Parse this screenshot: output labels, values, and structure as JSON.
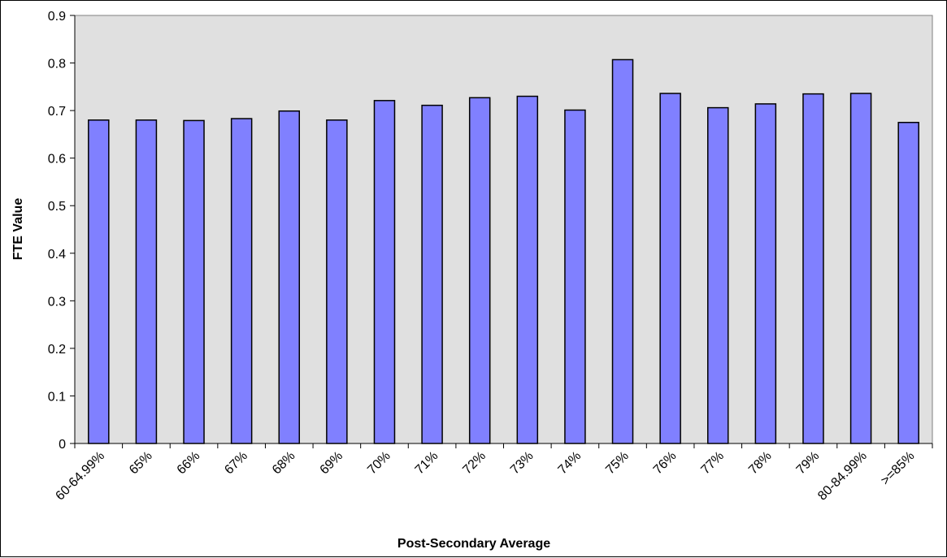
{
  "chart_data": {
    "type": "bar",
    "title": "",
    "xlabel": "Post-Secondary Average",
    "ylabel": "FTE Value",
    "categories": [
      "60-64.99%",
      "65%",
      "66%",
      "67%",
      "68%",
      "69%",
      "70%",
      "71%",
      "72%",
      "73%",
      "74%",
      "75%",
      "76%",
      "77%",
      "78%",
      "79%",
      "80-84.99%",
      ">=85%"
    ],
    "values": [
      0.68,
      0.68,
      0.679,
      0.683,
      0.699,
      0.68,
      0.721,
      0.711,
      0.727,
      0.73,
      0.701,
      0.807,
      0.736,
      0.706,
      0.714,
      0.735,
      0.736,
      0.675
    ],
    "ylim": [
      0,
      0.9
    ],
    "yticks": [
      "0",
      "0.1",
      "0.2",
      "0.3",
      "0.4",
      "0.5",
      "0.6",
      "0.7",
      "0.8",
      "0.9"
    ],
    "grid": false,
    "legend": "none",
    "colors": {
      "bar": "#8080ff",
      "plot_background": "#e0e0e0",
      "axis": "#000000"
    }
  }
}
